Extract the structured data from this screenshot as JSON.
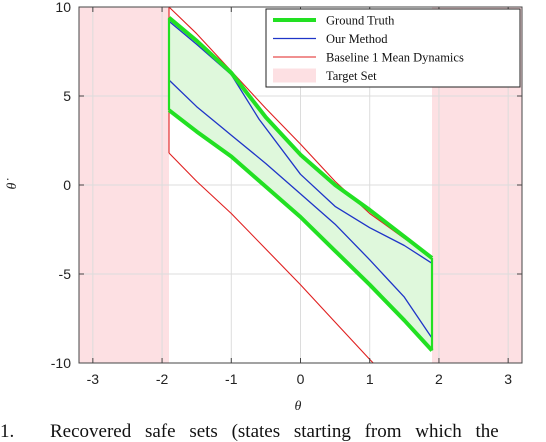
{
  "chart_data": {
    "type": "line",
    "title": "",
    "xlabel": "θ",
    "ylabel": "θ̇",
    "xlim": [
      -3.2,
      3.2
    ],
    "ylim": [
      -10,
      10
    ],
    "xticks": [
      -3,
      -2,
      -1,
      0,
      1,
      2,
      3
    ],
    "yticks": [
      -10,
      -5,
      0,
      5,
      10
    ],
    "grid": true,
    "legend_position": "top-right",
    "target_set": {
      "name": "Target Set",
      "color": "#fde0e3",
      "x_ranges": [
        [
          -3.2,
          -1.9
        ],
        [
          1.9,
          3.2
        ]
      ]
    },
    "series": [
      {
        "name": "Ground Truth",
        "color": "#22e022",
        "upper": [
          [
            -1.9,
            9.4
          ],
          [
            -1.5,
            8.1
          ],
          [
            -1.0,
            6.3
          ],
          [
            -0.5,
            3.8
          ],
          [
            0.0,
            1.7
          ],
          [
            0.5,
            0.0
          ],
          [
            1.0,
            -1.4
          ],
          [
            1.5,
            -2.9
          ],
          [
            1.9,
            -4.1
          ]
        ],
        "lower": [
          [
            -1.9,
            4.2
          ],
          [
            -1.5,
            3.0
          ],
          [
            -1.0,
            1.6
          ],
          [
            -0.5,
            -0.1
          ],
          [
            0.0,
            -1.8
          ],
          [
            0.5,
            -3.7
          ],
          [
            1.0,
            -5.6
          ],
          [
            1.5,
            -7.6
          ],
          [
            1.9,
            -9.3
          ]
        ],
        "edges": [
          [
            [
              -1.9,
              4.2
            ],
            [
              -1.9,
              9.4
            ]
          ],
          [
            [
              1.9,
              -9.3
            ],
            [
              1.9,
              -4.1
            ]
          ]
        ]
      },
      {
        "name": "Our Method",
        "color": "#1f35c8",
        "upper": [
          [
            -1.9,
            9.2
          ],
          [
            -1.5,
            7.9
          ],
          [
            -1.0,
            6.2
          ],
          [
            -0.6,
            3.7
          ],
          [
            0.0,
            0.6
          ],
          [
            0.5,
            -1.2
          ],
          [
            1.0,
            -2.4
          ],
          [
            1.5,
            -3.4
          ],
          [
            1.9,
            -4.4
          ]
        ],
        "lower": [
          [
            -1.9,
            5.9
          ],
          [
            -1.5,
            4.4
          ],
          [
            -1.0,
            2.8
          ],
          [
            -0.5,
            1.2
          ],
          [
            0.0,
            -0.5
          ],
          [
            0.5,
            -2.2
          ],
          [
            1.0,
            -4.2
          ],
          [
            1.5,
            -6.3
          ],
          [
            1.9,
            -8.6
          ]
        ],
        "edges": [
          [
            [
              -1.9,
              5.9
            ],
            [
              -1.9,
              9.2
            ]
          ],
          [
            [
              1.9,
              -8.6
            ],
            [
              1.9,
              -4.4
            ]
          ]
        ]
      },
      {
        "name": "Baseline 1 Mean Dynamics",
        "color": "#e02020",
        "upper": [
          [
            -1.9,
            10.0
          ],
          [
            -1.5,
            8.5
          ],
          [
            -1.0,
            6.4
          ],
          [
            -0.5,
            4.3
          ],
          [
            0.0,
            2.3
          ],
          [
            0.5,
            0.2
          ],
          [
            1.0,
            -1.6
          ],
          [
            1.5,
            -3.0
          ],
          [
            1.9,
            -4.1
          ]
        ],
        "lower": [
          [
            -1.9,
            1.8
          ],
          [
            -1.5,
            0.2
          ],
          [
            -1.0,
            -1.6
          ],
          [
            -0.5,
            -3.6
          ],
          [
            0.0,
            -5.6
          ],
          [
            0.5,
            -7.7
          ],
          [
            1.0,
            -9.8
          ],
          [
            1.05,
            -10.0
          ]
        ],
        "edges": [
          [
            [
              -1.9,
              1.8
            ],
            [
              -1.9,
              10.0
            ]
          ],
          [
            [
              1.9,
              -4.1
            ],
            [
              1.9,
              -9.3
            ]
          ]
        ]
      }
    ]
  },
  "caption": {
    "number": "1.",
    "text": "Recovered safe sets (states starting from which the"
  }
}
